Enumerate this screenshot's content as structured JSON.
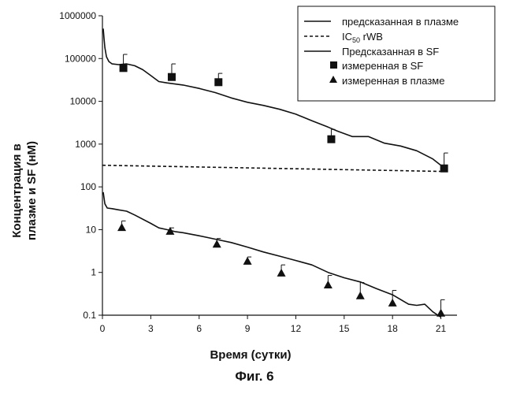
{
  "chart_data": {
    "type": "line",
    "y_scale": "log",
    "title": "",
    "xlabel": "Время (сутки)",
    "ylabel_line1": "Концентрация в",
    "ylabel_line2": "плазме и SF (нМ)",
    "xlim": [
      0,
      22
    ],
    "ylim": [
      0.1,
      1000000
    ],
    "x_ticks": [
      0,
      3,
      6,
      9,
      12,
      15,
      18,
      21
    ],
    "x_tick_labels": [
      "0",
      "3",
      "6",
      "9",
      "12",
      "15",
      "18",
      "21"
    ],
    "y_ticks": [
      0.1,
      1,
      10,
      100,
      1000,
      10000,
      100000,
      1000000
    ],
    "y_tick_labels": [
      "0.1",
      "1",
      "10",
      "100",
      "1000",
      "10000",
      "100000",
      "1000000"
    ],
    "legend": {
      "placement": "top-right",
      "entries": [
        {
          "label": "предсказанная в плазме",
          "style": "solid-line"
        },
        {
          "label_main": "IC",
          "label_sub": "50",
          "label_rest": " rWB",
          "style": "dashed-line"
        },
        {
          "label": "Предсказанная в SF",
          "style": "solid-line"
        },
        {
          "label": "измеренная в SF",
          "style": "square"
        },
        {
          "label": "измеренная в плазме",
          "style": "triangle"
        }
      ]
    },
    "series": [
      {
        "name": "Предсказанная в SF",
        "kind": "line",
        "x": [
          0.05,
          0.1,
          0.15,
          0.25,
          0.4,
          0.6,
          1.0,
          1.5,
          2.0,
          2.5,
          3.0,
          3.5,
          4.0,
          5.0,
          6.0,
          7.0,
          8.0,
          9.0,
          10.0,
          11.0,
          12.0,
          13.0,
          14.0,
          14.6,
          15.5,
          16.5,
          17.5,
          18.5,
          19.5,
          20.5,
          21.0
        ],
        "y": [
          500000,
          300000,
          180000,
          110000,
          85000,
          75000,
          72000,
          75000,
          68000,
          55000,
          40000,
          29000,
          27000,
          24000,
          20000,
          16000,
          12000,
          9500,
          8000,
          6500,
          5000,
          3500,
          2500,
          2000,
          1500,
          1500,
          1050,
          900,
          700,
          450,
          320
        ]
      },
      {
        "name": "предсказанная в плазме",
        "kind": "line",
        "x": [
          0.05,
          0.15,
          0.3,
          0.6,
          1.0,
          1.5,
          2.0,
          3.0,
          3.5,
          4.0,
          4.5,
          5.0,
          6.0,
          7.0,
          8.0,
          9.0,
          10.0,
          11.0,
          12.0,
          13.0,
          14.0,
          15.0,
          16.0,
          17.0,
          18.0,
          19.0,
          19.5,
          20.0,
          20.5,
          21.0
        ],
        "y": [
          75,
          40,
          32,
          31,
          29,
          27,
          22,
          14,
          11,
          10,
          9,
          8.5,
          7.2,
          6.0,
          5.0,
          3.9,
          3.0,
          2.4,
          1.9,
          1.5,
          1.0,
          0.75,
          0.6,
          0.42,
          0.3,
          0.18,
          0.17,
          0.18,
          0.12,
          0.09
        ]
      },
      {
        "name": "IC50 rWB",
        "kind": "dashed",
        "x": [
          0,
          21
        ],
        "y": [
          320,
          230
        ]
      },
      {
        "name": "измеренная в SF",
        "kind": "square",
        "x": [
          1.3,
          4.3,
          7.2,
          14.2,
          21.2
        ],
        "y": [
          60000,
          37000,
          28000,
          1300,
          270
        ],
        "err_upper": [
          125000,
          75000,
          45000,
          2200,
          620
        ]
      },
      {
        "name": "измеренная в плазме",
        "kind": "triangle",
        "x": [
          1.2,
          4.2,
          7.1,
          9.0,
          11.1,
          14.0,
          16.0,
          18.0,
          21.0
        ],
        "y": [
          11,
          9,
          4.5,
          1.8,
          0.95,
          0.5,
          0.28,
          0.19,
          0.11
        ],
        "err_upper": [
          16,
          11,
          6.2,
          2.3,
          1.5,
          0.85,
          0.58,
          0.38,
          0.23
        ]
      }
    ]
  },
  "caption": "Фиг. 6"
}
